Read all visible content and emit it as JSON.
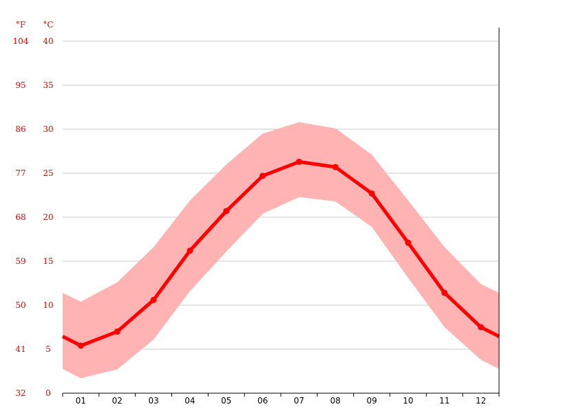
{
  "chart_data": {
    "type": "line",
    "title": "",
    "xlabel": "",
    "ylabel": "",
    "categories": [
      "01",
      "02",
      "03",
      "04",
      "05",
      "06",
      "07",
      "08",
      "09",
      "10",
      "11",
      "12"
    ],
    "units": {
      "fahrenheit": "°F",
      "celsius": "°C"
    },
    "ylim": [
      0,
      40
    ],
    "y_ticks_celsius": [
      "0",
      "5",
      "10",
      "15",
      "20",
      "25",
      "30",
      "35",
      "40"
    ],
    "y_ticks_fahrenheit": [
      "32",
      "41",
      "50",
      "59",
      "68",
      "77",
      "86",
      "95",
      "104"
    ],
    "grid": true,
    "series": [
      {
        "values": [
          5.4,
          7.0,
          10.6,
          16.2,
          20.7,
          24.7,
          26.3,
          25.7,
          22.7,
          17.1,
          11.4,
          7.5
        ]
      }
    ],
    "range_band": {
      "upper": [
        10.4,
        12.6,
        16.6,
        21.9,
        26.0,
        29.5,
        30.8,
        30.1,
        27.1,
        21.9,
        16.6,
        12.4
      ],
      "lower": [
        1.7,
        2.7,
        6.1,
        11.6,
        16.1,
        20.4,
        22.3,
        21.8,
        18.9,
        13.1,
        7.5,
        3.8
      ]
    },
    "colors": {
      "line": "#ff0000",
      "band": "#ffb3b3",
      "axis_text": "#e00000",
      "grid": "#c8c8c8"
    }
  }
}
